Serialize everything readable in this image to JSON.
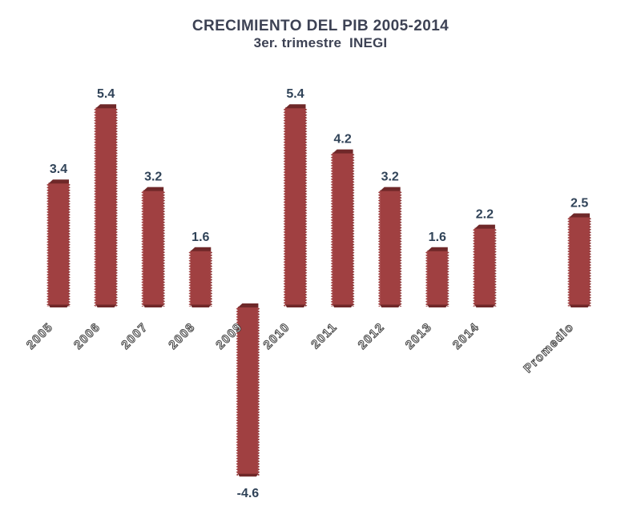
{
  "page": {
    "background_color": "#ffffff"
  },
  "chart_data": {
    "type": "bar",
    "title": "CRECIMIENTO DEL PIB 2005-2014",
    "subtitle": "3er. trimestre  INEGI",
    "categories": [
      "2005",
      "2006",
      "2007",
      "2008",
      "2009",
      "2010",
      "2011",
      "2012",
      "2013",
      "2014",
      "Promedio"
    ],
    "values": [
      3.4,
      5.4,
      3.2,
      1.6,
      -4.6,
      5.4,
      4.2,
      3.2,
      1.6,
      2.2,
      2.5
    ],
    "value_labels": [
      "3.4",
      "5.4",
      "3.2",
      "1.6",
      "-4.6",
      "5.4",
      "4.2",
      "3.2",
      "1.6",
      "2.2",
      "2.5"
    ],
    "xlabel": "",
    "ylabel": "",
    "ylim": [
      -5,
      6
    ],
    "grid": false,
    "legend": false,
    "axis_lines": false,
    "bar_style": "3d-beveled-serrated-edges",
    "category_label_rotation_deg": -45,
    "colors": {
      "bar_fill": "#a04041",
      "bar_edge_dark": "#6f2829",
      "bar_side_shade": "#8e3536",
      "value_label": "#304358",
      "title": "#3d4254",
      "category_label_fill": "#ffffff",
      "category_label_outline": "#3f3f3f"
    }
  }
}
